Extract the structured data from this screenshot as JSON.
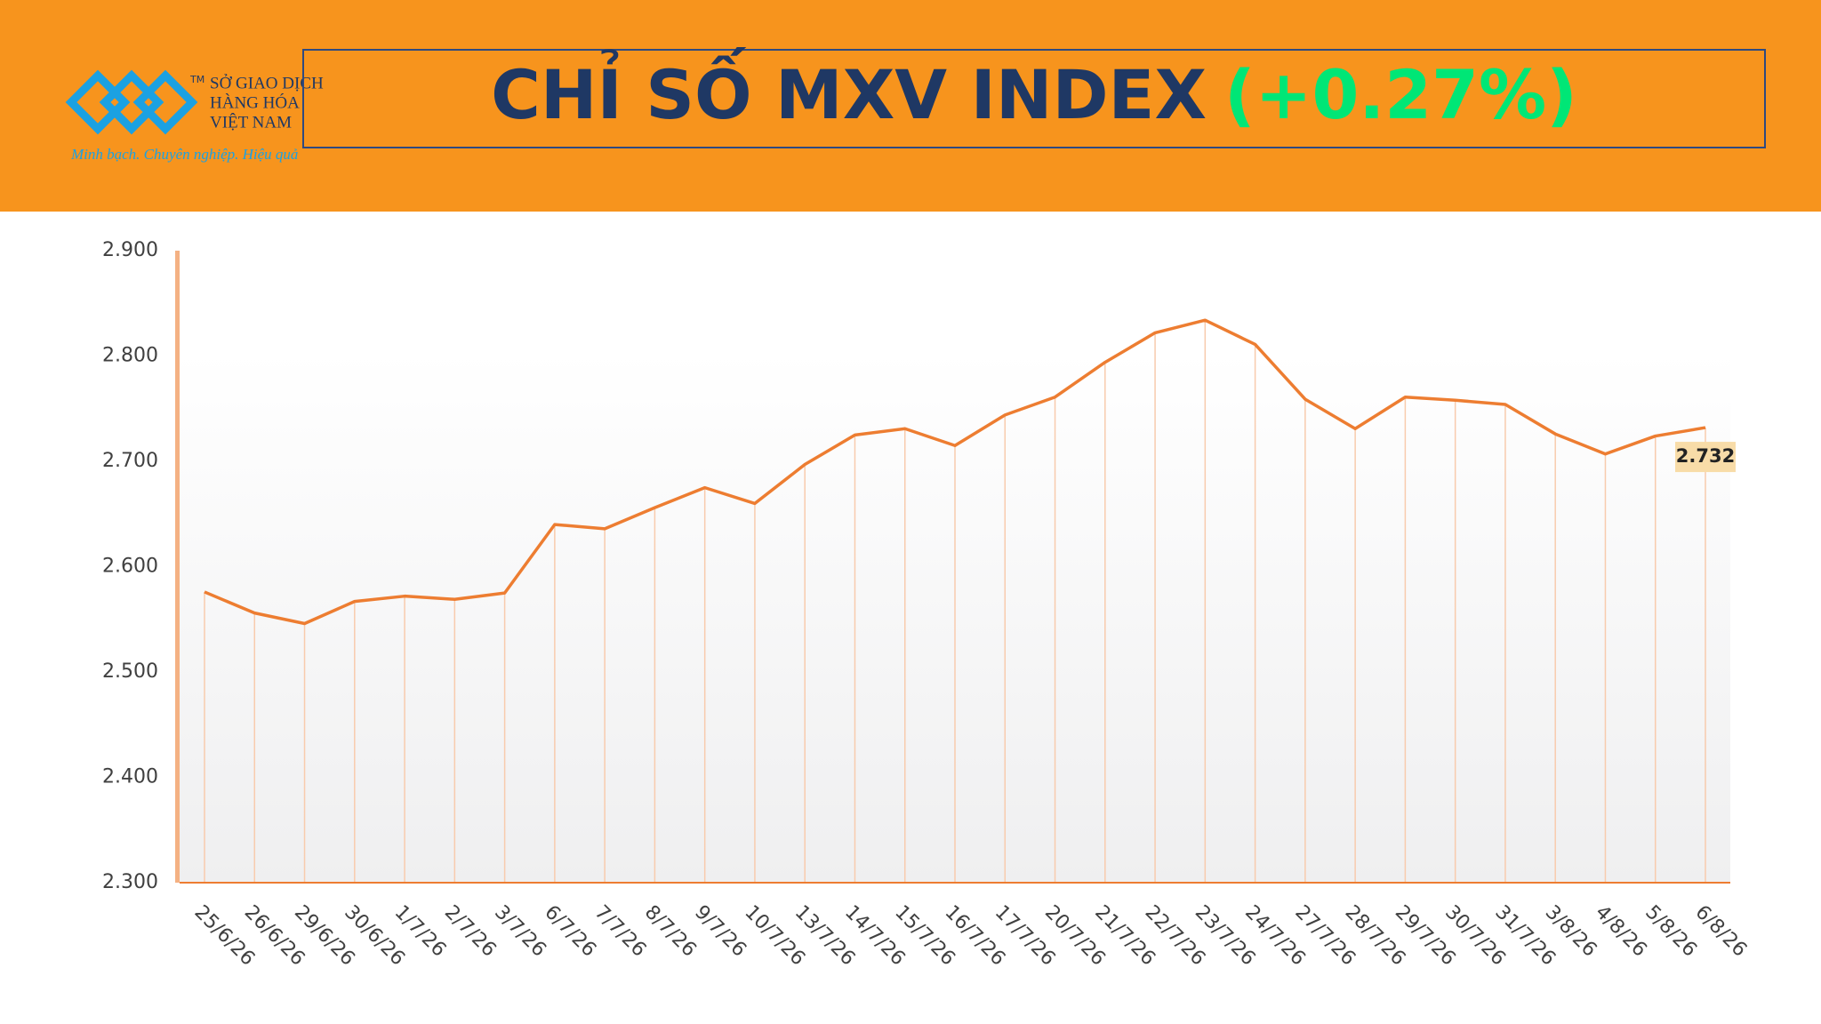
{
  "header": {
    "logo_name": [
      "SỞ GIAO DỊCH",
      "HÀNG HÓA",
      "VIỆT NAM"
    ],
    "logo_mark": "TM",
    "slogan": "Minh bạch. Chuyên nghiệp. Hiệu quả"
  },
  "chart_data": {
    "type": "line",
    "title": "CHỈ SỐ MXV INDEX",
    "title_change": "(+0.27%)",
    "categories": [
      "25/6/26",
      "26/6/26",
      "29/6/26",
      "30/6/26",
      "1/7/26",
      "2/7/26",
      "3/7/26",
      "6/7/26",
      "7/7/26",
      "8/7/26",
      "9/7/26",
      "10/7/26",
      "13/7/26",
      "14/7/26",
      "15/7/26",
      "16/7/26",
      "17/7/26",
      "20/7/26",
      "21/7/26",
      "22/7/26",
      "23/7/26",
      "24/7/26",
      "27/7/26",
      "28/7/26",
      "29/7/26",
      "30/7/26",
      "31/7/26",
      "3/8/26",
      "4/8/26",
      "5/8/26",
      "6/8/26"
    ],
    "values": [
      2576,
      2556,
      2546,
      2567,
      2572,
      2569,
      2575,
      2640,
      2636,
      2656,
      2675,
      2660,
      2697,
      2725,
      2731,
      2715,
      2744,
      2761,
      2794,
      2822,
      2834,
      2811,
      2759,
      2731,
      2761,
      2758,
      2754,
      2726,
      2707,
      2724,
      2732
    ],
    "value_labels": [
      null,
      null,
      null,
      null,
      null,
      null,
      null,
      null,
      null,
      null,
      null,
      null,
      null,
      null,
      null,
      null,
      null,
      null,
      null,
      null,
      null,
      null,
      null,
      null,
      null,
      null,
      null,
      null,
      null,
      null,
      "2.732"
    ],
    "color": "#ed7d31",
    "ylim": [
      2300,
      2900
    ],
    "yticks": [
      {
        "value": 2300,
        "label": "2.300"
      },
      {
        "value": 2400,
        "label": "2.400"
      },
      {
        "value": 2500,
        "label": "2.500"
      },
      {
        "value": 2600,
        "label": "2.600"
      },
      {
        "value": 2700,
        "label": "2.700"
      },
      {
        "value": 2800,
        "label": "2.800"
      },
      {
        "value": 2900,
        "label": "2.900"
      }
    ],
    "drop_lines": true
  }
}
